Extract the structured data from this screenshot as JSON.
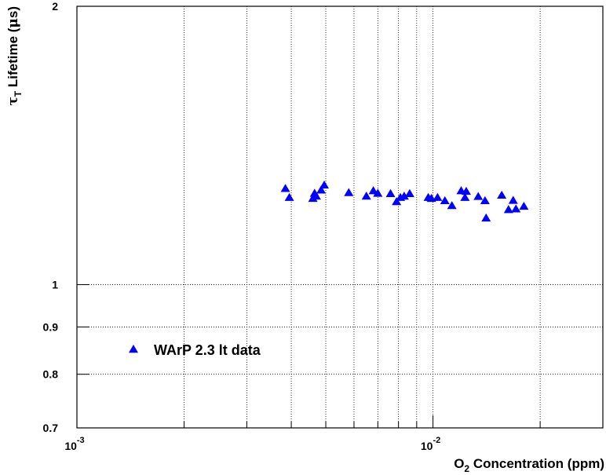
{
  "chart_data": {
    "type": "scatter",
    "x_scale": "log",
    "y_scale": "log",
    "xlim": [
      0.001,
      0.03
    ],
    "ylim": [
      0.7,
      2
    ],
    "xlabel": {
      "main": "O",
      "sub": "2",
      "rest": " Concentration (ppm)"
    },
    "ylabel": {
      "tau": "τ",
      "sub": "T",
      "rest": " Lifetime (",
      "mu": "μ",
      "unit": "s)"
    },
    "x_tick_labels": [
      {
        "value": 0.001,
        "base": "10",
        "exp": "-3"
      },
      {
        "value": 0.01,
        "base": "10",
        "exp": "-2"
      }
    ],
    "y_tick_labels": [
      {
        "value": 0.7,
        "text": "0.7"
      },
      {
        "value": 0.8,
        "text": "0.8"
      },
      {
        "value": 0.9,
        "text": "0.9"
      },
      {
        "value": 1,
        "text": "1"
      },
      {
        "value": 2,
        "text": "2"
      }
    ],
    "x_grid": [
      0.002,
      0.003,
      0.004,
      0.005,
      0.006,
      0.007,
      0.008,
      0.009,
      0.01,
      0.02,
      0.03
    ],
    "y_grid": [
      0.8,
      0.9,
      1
    ],
    "grid": true,
    "legend_position": "bottom-left",
    "marker": "triangle",
    "series": [
      {
        "name": "WArP 2.3 lt data",
        "color": "#0000ff",
        "points": [
          {
            "x": 0.00385,
            "y": 1.27
          },
          {
            "x": 0.00395,
            "y": 1.242
          },
          {
            "x": 0.0046,
            "y": 1.239
          },
          {
            "x": 0.00465,
            "y": 1.255
          },
          {
            "x": 0.0047,
            "y": 1.246
          },
          {
            "x": 0.00485,
            "y": 1.265
          },
          {
            "x": 0.00495,
            "y": 1.281
          },
          {
            "x": 0.0058,
            "y": 1.257
          },
          {
            "x": 0.0065,
            "y": 1.246
          },
          {
            "x": 0.0068,
            "y": 1.263
          },
          {
            "x": 0.007,
            "y": 1.255
          },
          {
            "x": 0.0076,
            "y": 1.254
          },
          {
            "x": 0.0079,
            "y": 1.229
          },
          {
            "x": 0.0081,
            "y": 1.242
          },
          {
            "x": 0.0083,
            "y": 1.246
          },
          {
            "x": 0.0086,
            "y": 1.254
          },
          {
            "x": 0.0097,
            "y": 1.242
          },
          {
            "x": 0.0099,
            "y": 1.239
          },
          {
            "x": 0.0103,
            "y": 1.242
          },
          {
            "x": 0.0108,
            "y": 1.232
          },
          {
            "x": 0.0113,
            "y": 1.217
          },
          {
            "x": 0.012,
            "y": 1.263
          },
          {
            "x": 0.0123,
            "y": 1.242
          },
          {
            "x": 0.0124,
            "y": 1.261
          },
          {
            "x": 0.0134,
            "y": 1.245
          },
          {
            "x": 0.014,
            "y": 1.232
          },
          {
            "x": 0.0141,
            "y": 1.18
          },
          {
            "x": 0.0156,
            "y": 1.249
          },
          {
            "x": 0.0163,
            "y": 1.205
          },
          {
            "x": 0.0168,
            "y": 1.233
          },
          {
            "x": 0.0171,
            "y": 1.207
          },
          {
            "x": 0.018,
            "y": 1.215
          }
        ]
      }
    ]
  }
}
